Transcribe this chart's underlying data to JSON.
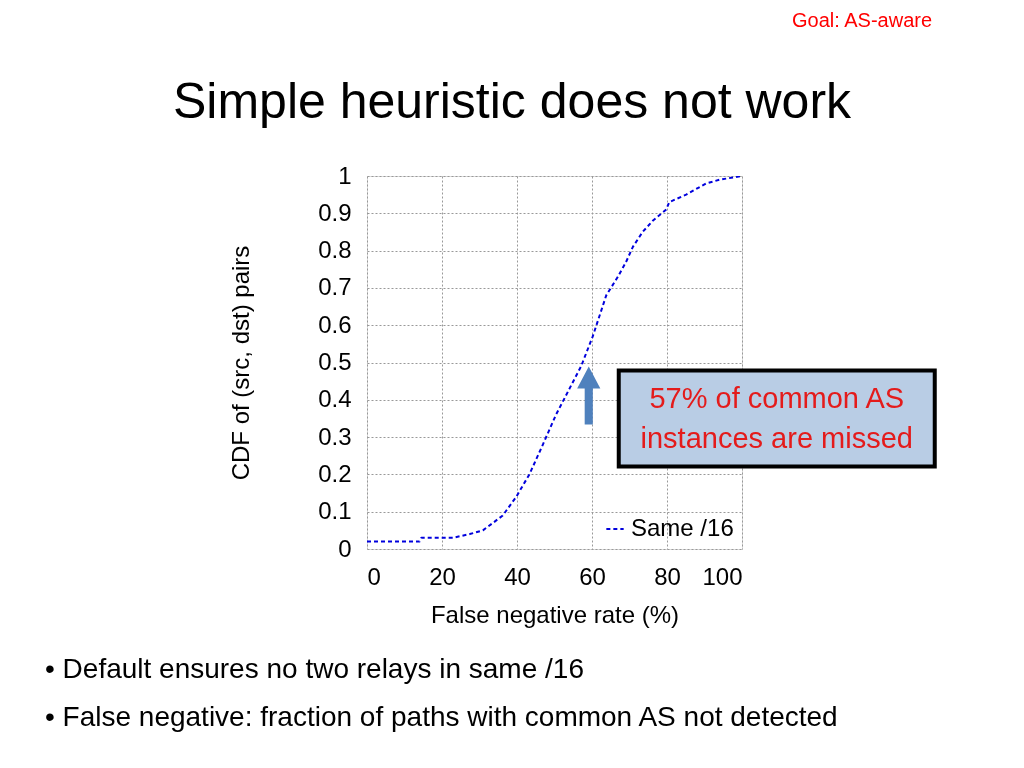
{
  "chart_data": {
    "type": "line",
    "title": "Simple heuristic does not work",
    "xlabel": "False negative rate (%)",
    "ylabel": "CDF of (src, dst) pairs",
    "x": [
      0,
      14.0,
      14.5,
      22.9,
      27.4,
      30.9,
      33.6,
      36.2,
      39.8,
      43.3,
      46.9,
      50.4,
      54.0,
      57.1,
      60.2,
      63.8,
      66.9,
      69.1,
      70.9,
      73.5,
      76.2,
      79.8,
      80.6,
      85.1,
      90.4,
      94.0,
      100
    ],
    "series": [
      {
        "name": "Same /16",
        "color": "#0000dd",
        "values": [
          0.02,
          0.02,
          0.03,
          0.03,
          0.04,
          0.05,
          0.07,
          0.09,
          0.14,
          0.2,
          0.28,
          0.36,
          0.43,
          0.49,
          0.57,
          0.68,
          0.73,
          0.77,
          0.81,
          0.85,
          0.88,
          0.91,
          0.93,
          0.95,
          0.98,
          0.99,
          1
        ]
      }
    ],
    "xlim": [
      0,
      100
    ],
    "ylim": [
      0,
      1
    ],
    "xticks": [
      0,
      20,
      40,
      60,
      80,
      100
    ],
    "yticks": [
      0,
      0.1,
      0.2,
      0.3,
      0.4,
      0.5,
      0.6,
      0.7,
      0.8,
      0.9,
      1
    ],
    "grid": true,
    "legend": "bottom right",
    "line_style": "dashed",
    "annotations": [
      "Goal: AS-aware",
      {
        "text": "57% of common AS\ninstances are missed",
        "x": 57,
        "y": 0.5
      },
      "• Default ensures no two relays in same /16",
      "• False negative: fraction of paths with common AS not detected"
    ]
  }
}
